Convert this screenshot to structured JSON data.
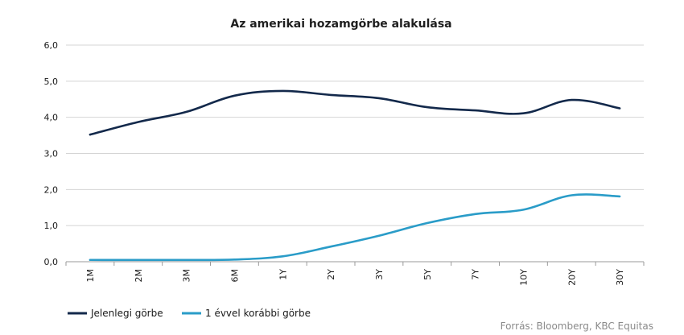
{
  "chart_data": {
    "type": "line",
    "title": "Az amerikai hozamgörbe alakulása",
    "categories": [
      "1M",
      "2M",
      "3M",
      "6M",
      "1Y",
      "2Y",
      "3Y",
      "5Y",
      "7Y",
      "10Y",
      "20Y",
      "30Y"
    ],
    "ylim": [
      0,
      6
    ],
    "yticks": [
      0,
      1,
      2,
      3,
      4,
      5,
      6
    ],
    "ytick_labels": [
      "0,0",
      "1,0",
      "2,0",
      "3,0",
      "4,0",
      "5,0",
      "6,0"
    ],
    "grid": true,
    "legend_position": "bottom-left",
    "series": [
      {
        "name": "Jelenlegi görbe",
        "color": "#13294b",
        "values": [
          3.52,
          3.87,
          4.15,
          4.6,
          4.73,
          4.62,
          4.53,
          4.28,
          4.19,
          4.11,
          4.48,
          4.25
        ]
      },
      {
        "name": "1 évvel korábbi görbe",
        "color": "#2a9cc8",
        "values": [
          0.05,
          0.05,
          0.05,
          0.06,
          0.15,
          0.42,
          0.72,
          1.07,
          1.32,
          1.44,
          1.84,
          1.81
        ]
      }
    ]
  },
  "source_text": "Forrás: Bloomberg,  KBC Equitas"
}
